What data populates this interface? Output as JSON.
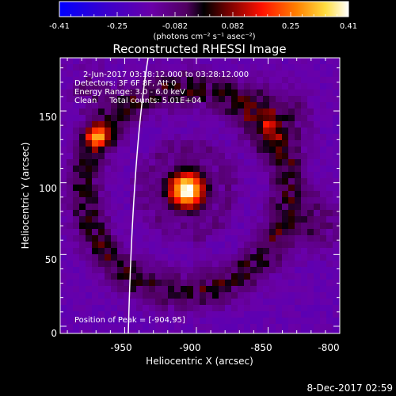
{
  "colorbar": {
    "ticks": [
      "-0.41",
      "-0.25",
      "-0.082",
      "0.082",
      "0.25",
      "0.41"
    ],
    "unit": "(photons cm⁻² s⁻¹ asec⁻²)"
  },
  "title": "Reconstructed RHESSI Image",
  "info": {
    "time": "2-Jun-2017 03:18:12.000 to 03:28:12.000",
    "detectors": "Detectors: 3F 6F 8F, Att 0",
    "energy": "Energy Range: 3.0 - 6.0 keV",
    "clean": "Clean     Total counts: 5.01E+04"
  },
  "peak_text": "Position of Peak = [-904,95]",
  "axes": {
    "xlabel": "Heliocentric X (arcsec)",
    "ylabel": "Heliocentric Y (arcsec)",
    "x_ticks": [
      {
        "value": -950,
        "label": "-950"
      },
      {
        "value": -900,
        "label": "-900"
      },
      {
        "value": -850,
        "label": "-850"
      },
      {
        "value": -800,
        "label": "-800"
      }
    ],
    "y_ticks": [
      {
        "value": 0,
        "label": "0"
      },
      {
        "value": 50,
        "label": "50"
      },
      {
        "value": 100,
        "label": "100"
      },
      {
        "value": 150,
        "label": "150"
      }
    ],
    "xlim": [
      -995,
      -800
    ],
    "ylim": [
      -5,
      187
    ]
  },
  "footer_date": "8-Dec-2017 02:59",
  "colors": {
    "background": "#000000",
    "limb_line": "#ffffff"
  }
}
